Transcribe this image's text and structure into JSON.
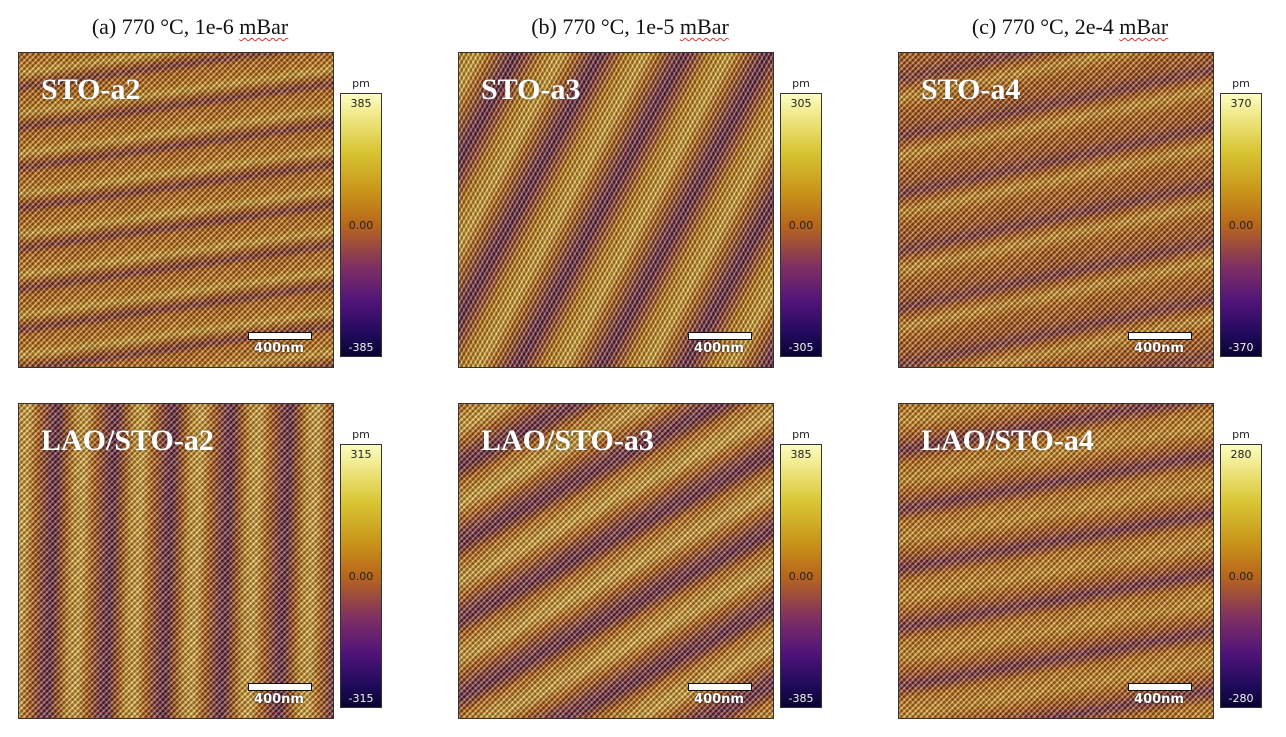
{
  "columns": [
    {
      "title": "(a) 770 °C, 1e-6",
      "unit": "mBar"
    },
    {
      "title": "(b) 770 °C, 1e-5",
      "unit": "mBar"
    },
    {
      "title": "(c) 770 °C, 2e-4",
      "unit": "mBar"
    }
  ],
  "panels": [
    {
      "label": "STO-a2",
      "scale": "400nm",
      "cbar_unit": "pm",
      "cbar_max": "385",
      "cbar_mid": "0.00",
      "cbar_min": "-385"
    },
    {
      "label": "STO-a3",
      "scale": "400nm",
      "cbar_unit": "pm",
      "cbar_max": "305",
      "cbar_mid": "0.00",
      "cbar_min": "-305"
    },
    {
      "label": "STO-a4",
      "scale": "400nm",
      "cbar_unit": "pm",
      "cbar_max": "370",
      "cbar_mid": "0.00",
      "cbar_min": "-370"
    },
    {
      "label": "LAO/STO-a2",
      "scale": "400nm",
      "cbar_unit": "pm",
      "cbar_max": "315",
      "cbar_mid": "0.00",
      "cbar_min": "-315"
    },
    {
      "label": "LAO/STO-a3",
      "scale": "400nm",
      "cbar_unit": "pm",
      "cbar_max": "385",
      "cbar_mid": "0.00",
      "cbar_min": "-385"
    },
    {
      "label": "LAO/STO-a4",
      "scale": "400nm",
      "cbar_unit": "pm",
      "cbar_max": "280",
      "cbar_mid": "0.00",
      "cbar_min": "-280"
    }
  ],
  "colors": {
    "colormap": [
      "#fcfec0",
      "#d8c532",
      "#b8661c",
      "#4e137a",
      "#0a0430"
    ],
    "label_text": "#ffffff"
  }
}
